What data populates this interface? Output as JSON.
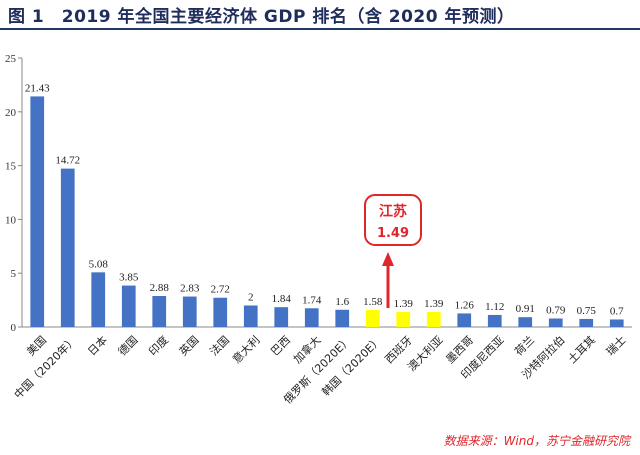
{
  "title": "图 1　2019 年全国主要经济体 GDP 排名（含 2020 年预测）",
  "source": "数据来源：Wind，苏宁金融研究院",
  "colors": {
    "primary": "#4472c4",
    "highlight": "#ffff00",
    "callout": "#e0262b",
    "title": "#1f2d5c"
  },
  "callout": {
    "name": "江苏",
    "value": "1.49"
  },
  "chart_data": {
    "type": "bar",
    "title": "2019 年全国主要经济体 GDP 排名（含 2020 年预测）",
    "xlabel": "",
    "ylabel": "",
    "ylim": [
      0,
      25
    ],
    "yticks": [
      0,
      5,
      10,
      15,
      20,
      25
    ],
    "grid": false,
    "categories": [
      "美国",
      "中国（2020年）",
      "日本",
      "德国",
      "印度",
      "英国",
      "法国",
      "意大利",
      "巴西",
      "加拿大",
      "俄罗斯（2020E）",
      "韩国（2020E）",
      "西班牙",
      "澳大利亚",
      "墨西哥",
      "印度尼西亚",
      "荷兰",
      "沙特阿拉伯",
      "土耳其",
      "瑞士"
    ],
    "values": [
      21.43,
      14.72,
      5.08,
      3.85,
      2.88,
      2.83,
      2.72,
      2,
      1.84,
      1.74,
      1.6,
      1.58,
      1.39,
      1.39,
      1.26,
      1.12,
      0.91,
      0.79,
      0.75,
      0.7
    ],
    "value_labels": [
      "21.43",
      "14.72",
      "5.08",
      "3.85",
      "2.88",
      "2.83",
      "2.72",
      "2",
      "1.84",
      "1.74",
      "1.6",
      "1.58",
      "1.39",
      "1.39",
      "1.26",
      "1.12",
      "0.91",
      "0.79",
      "0.75",
      "0.7"
    ],
    "highlighted": [
      false,
      false,
      false,
      false,
      false,
      false,
      false,
      false,
      false,
      false,
      false,
      true,
      true,
      true,
      false,
      false,
      false,
      false,
      false,
      false
    ]
  }
}
